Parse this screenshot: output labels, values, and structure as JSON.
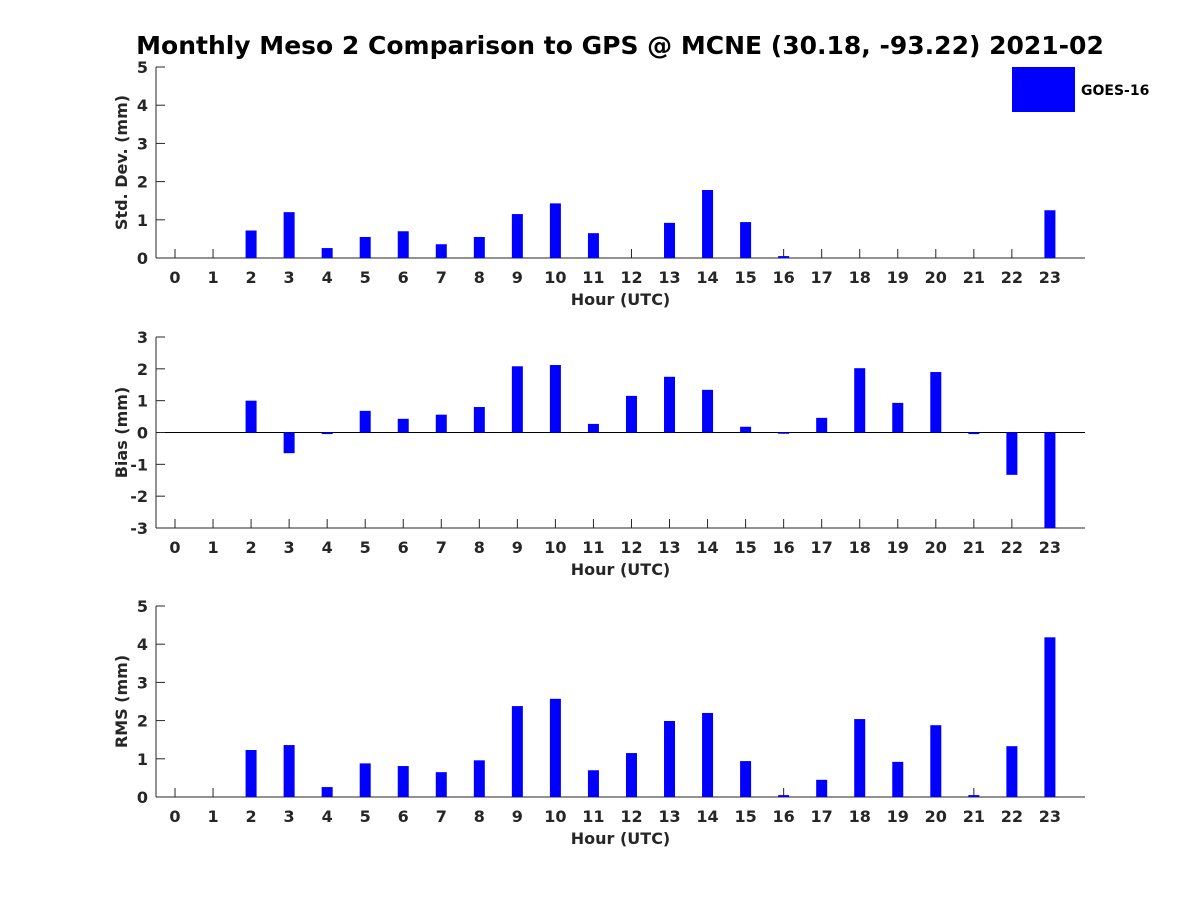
{
  "chart_data": {
    "title": "Monthly Meso 2 Comparison to GPS @ MCNE (30.18, -93.22) 2021-02",
    "type": "bar",
    "series_color": "#0000ff",
    "legend": {
      "label": "GOES-16",
      "placement": "top-right"
    },
    "panels": [
      {
        "id": "std",
        "type": "bar",
        "ylabel": "Std. Dev. (mm)",
        "xlabel": "Hour (UTC)",
        "ylim": [
          0,
          5
        ],
        "yticks": [
          0,
          1,
          2,
          3,
          4,
          5
        ],
        "categories": [
          0,
          1,
          2,
          3,
          4,
          5,
          6,
          7,
          8,
          9,
          10,
          11,
          12,
          13,
          14,
          15,
          16,
          17,
          18,
          19,
          20,
          21,
          22,
          23
        ],
        "values": [
          0,
          0,
          0.72,
          1.2,
          0.26,
          0.55,
          0.7,
          0.36,
          0.55,
          1.15,
          1.43,
          0.65,
          0,
          0.92,
          1.78,
          0.94,
          0.05,
          0,
          0,
          0,
          0,
          0,
          0,
          1.25
        ]
      },
      {
        "id": "bias",
        "type": "bar",
        "ylabel": "Bias (mm)",
        "xlabel": "Hour (UTC)",
        "ylim": [
          -3,
          3
        ],
        "yticks": [
          -3,
          -2,
          -1,
          0,
          1,
          2,
          3
        ],
        "zero_line": true,
        "categories": [
          0,
          1,
          2,
          3,
          4,
          5,
          6,
          7,
          8,
          9,
          10,
          11,
          12,
          13,
          14,
          15,
          16,
          17,
          18,
          19,
          20,
          21,
          22,
          23
        ],
        "values": [
          0,
          0,
          1.0,
          -0.65,
          -0.05,
          0.68,
          0.43,
          0.56,
          0.8,
          2.08,
          2.12,
          0.27,
          1.15,
          1.75,
          1.34,
          0.18,
          -0.04,
          0.46,
          2.02,
          0.93,
          1.9,
          -0.05,
          -1.33,
          -3.0
        ]
      },
      {
        "id": "rms",
        "type": "bar",
        "ylabel": "RMS (mm)",
        "xlabel": "Hour (UTC)",
        "ylim": [
          0,
          5
        ],
        "yticks": [
          0,
          1,
          2,
          3,
          4,
          5
        ],
        "categories": [
          0,
          1,
          2,
          3,
          4,
          5,
          6,
          7,
          8,
          9,
          10,
          11,
          12,
          13,
          14,
          15,
          16,
          17,
          18,
          19,
          20,
          21,
          22,
          23
        ],
        "values": [
          0,
          0,
          1.23,
          1.36,
          0.26,
          0.88,
          0.81,
          0.65,
          0.96,
          2.38,
          2.57,
          0.7,
          1.15,
          1.99,
          2.2,
          0.94,
          0.05,
          0.45,
          2.04,
          0.92,
          1.88,
          0.05,
          1.33,
          4.18
        ]
      }
    ]
  }
}
